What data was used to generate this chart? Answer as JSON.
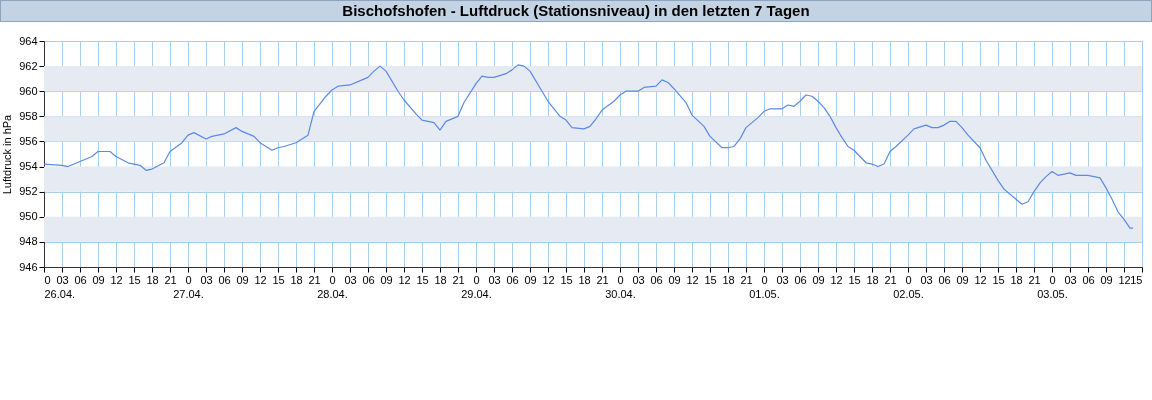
{
  "chart_data": {
    "type": "line",
    "title": "Bischofshofen - Luftdruck (Stationsniveau) in den letzten 7 Tagen",
    "ylabel": "Luftdruck in hPa",
    "xlim": [
      "--04-26T00:00",
      "--05-03T15:00"
    ],
    "ylim": [
      946,
      964
    ],
    "yticks": [
      946,
      948,
      950,
      952,
      954,
      956,
      958,
      960,
      962,
      964
    ],
    "grid": true,
    "xticks": [
      {
        "value": "--04-26T00:00",
        "label": "0\n26.04."
      },
      {
        "value": "--04-26T03:00",
        "label": "03"
      },
      {
        "value": "--04-26T06:00",
        "label": "06"
      },
      {
        "value": "--04-26T09:00",
        "label": "09"
      },
      {
        "value": "--04-26T12:00",
        "label": "12"
      },
      {
        "value": "--04-26T15:00",
        "label": "15"
      },
      {
        "value": "--04-26T18:00",
        "label": "18"
      },
      {
        "value": "--04-26T21:00",
        "label": "21"
      },
      {
        "value": "--04-27T00:00",
        "label": "0\n27.04."
      },
      {
        "value": "--04-27T03:00",
        "label": "03"
      },
      {
        "value": "--04-27T06:00",
        "label": "06"
      },
      {
        "value": "--04-27T09:00",
        "label": "09"
      },
      {
        "value": "--04-27T12:00",
        "label": "12"
      },
      {
        "value": "--04-27T15:00",
        "label": "15"
      },
      {
        "value": "--04-27T18:00",
        "label": "18"
      },
      {
        "value": "--04-27T21:00",
        "label": "21"
      },
      {
        "value": "--04-28T00:00",
        "label": "0\n28.04."
      },
      {
        "value": "--04-28T03:00",
        "label": "03"
      },
      {
        "value": "--04-28T06:00",
        "label": "06"
      },
      {
        "value": "--04-28T09:00",
        "label": "09"
      },
      {
        "value": "--04-28T12:00",
        "label": "12"
      },
      {
        "value": "--04-28T15:00",
        "label": "15"
      },
      {
        "value": "--04-28T18:00",
        "label": "18"
      },
      {
        "value": "--04-28T21:00",
        "label": "21"
      },
      {
        "value": "--04-29T00:00",
        "label": "0\n29.04."
      },
      {
        "value": "--04-29T03:00",
        "label": "03"
      },
      {
        "value": "--04-29T06:00",
        "label": "06"
      },
      {
        "value": "--04-29T09:00",
        "label": "09"
      },
      {
        "value": "--04-29T12:00",
        "label": "12"
      },
      {
        "value": "--04-29T15:00",
        "label": "15"
      },
      {
        "value": "--04-29T18:00",
        "label": "18"
      },
      {
        "value": "--04-29T21:00",
        "label": "21"
      },
      {
        "value": "--04-30T00:00",
        "label": "0\n30.04."
      },
      {
        "value": "--04-30T03:00",
        "label": "03"
      },
      {
        "value": "--04-30T06:00",
        "label": "06"
      },
      {
        "value": "--04-30T09:00",
        "label": "09"
      },
      {
        "value": "--04-30T12:00",
        "label": "12"
      },
      {
        "value": "--04-30T15:00",
        "label": "15"
      },
      {
        "value": "--04-30T18:00",
        "label": "18"
      },
      {
        "value": "--04-30T21:00",
        "label": "21"
      },
      {
        "value": "--05-01T00:00",
        "label": "0\n01.05."
      },
      {
        "value": "--05-01T03:00",
        "label": "03"
      },
      {
        "value": "--05-01T06:00",
        "label": "06"
      },
      {
        "value": "--05-01T09:00",
        "label": "09"
      },
      {
        "value": "--05-01T12:00",
        "label": "12"
      },
      {
        "value": "--05-01T15:00",
        "label": "15"
      },
      {
        "value": "--05-01T18:00",
        "label": "18"
      },
      {
        "value": "--05-01T21:00",
        "label": "21"
      },
      {
        "value": "--05-02T00:00",
        "label": "0\n02.05."
      },
      {
        "value": "--05-02T03:00",
        "label": "03"
      },
      {
        "value": "--05-02T06:00",
        "label": "06"
      },
      {
        "value": "--05-02T09:00",
        "label": "09"
      },
      {
        "value": "--05-02T12:00",
        "label": "12"
      },
      {
        "value": "--05-02T15:00",
        "label": "15"
      },
      {
        "value": "--05-02T18:00",
        "label": "18"
      },
      {
        "value": "--05-02T21:00",
        "label": "21"
      },
      {
        "value": "--05-03T00:00",
        "label": "0\n03.05."
      },
      {
        "value": "--05-03T03:00",
        "label": "03"
      },
      {
        "value": "--05-03T06:00",
        "label": "06"
      },
      {
        "value": "--05-03T09:00",
        "label": "09"
      },
      {
        "value": "--05-03T12:00",
        "label": "12"
      },
      {
        "value": "--05-03T15:00",
        "label": "15"
      }
    ],
    "bands": [
      {
        "axis": "y",
        "from": 948,
        "to": 950,
        "color": "#e6eaf2"
      },
      {
        "axis": "y",
        "from": 952,
        "to": 954,
        "color": "#e6eaf2"
      },
      {
        "axis": "y",
        "from": 956,
        "to": 958,
        "color": "#e6eaf2"
      },
      {
        "axis": "y",
        "from": 960,
        "to": 962,
        "color": "#e6eaf2"
      }
    ],
    "series": [
      {
        "color": "#5b8ae6",
        "x": [
          "--04-26T00:00",
          "--04-26T03:00",
          "--04-26T04:00",
          "--04-26T06:00",
          "--04-26T08:00",
          "--04-26T09:00",
          "--04-26T11:00",
          "--04-26T12:00",
          "--04-26T14:00",
          "--04-26T16:00",
          "--04-26T17:00",
          "--04-26T18:00",
          "--04-26T20:00",
          "--04-26T21:00",
          "--04-26T23:00",
          "--04-27T00:00",
          "--04-27T01:00",
          "--04-27T03:00",
          "--04-27T04:00",
          "--04-27T06:00",
          "--04-27T08:00",
          "--04-27T09:00",
          "--04-27T11:00",
          "--04-27T12:00",
          "--04-27T14:00",
          "--04-27T15:00",
          "--04-27T16:00",
          "--04-27T18:00",
          "--04-27T20:00",
          "--04-27T21:00",
          "--04-27T22:00",
          "--04-27T23:00",
          "--04-28T00:00",
          "--04-28T01:00",
          "--04-28T03:00",
          "--04-28T05:00",
          "--04-28T06:00",
          "--04-28T07:00",
          "--04-28T08:00",
          "--04-28T09:00",
          "--04-28T11:00",
          "--04-28T12:00",
          "--04-28T14:00",
          "--04-28T15:00",
          "--04-28T17:00",
          "--04-28T18:00",
          "--04-28T19:00",
          "--04-28T21:00",
          "--04-28T22:00",
          "--04-29T00:00",
          "--04-29T01:00",
          "--04-29T02:00",
          "--04-29T03:00",
          "--04-29T05:00",
          "--04-29T06:00",
          "--04-29T07:00",
          "--04-29T08:00",
          "--04-29T09:00",
          "--04-29T11:00",
          "--04-29T12:00",
          "--04-29T14:00",
          "--04-29T15:00",
          "--04-29T16:00",
          "--04-29T18:00",
          "--04-29T19:00",
          "--04-29T20:00",
          "--04-29T21:00",
          "--04-29T23:00",
          "--04-30T00:00",
          "--04-30T01:00",
          "--04-30T03:00",
          "--04-30T04:00",
          "--04-30T06:00",
          "--04-30T07:00",
          "--04-30T08:00",
          "--04-30T09:00",
          "--04-30T11:00",
          "--04-30T12:00",
          "--04-30T14:00",
          "--04-30T15:00",
          "--04-30T17:00",
          "--04-30T18:00",
          "--04-30T19:00",
          "--04-30T20:00",
          "--04-30T21:00",
          "--04-30T23:00",
          "--05-01T00:00",
          "--05-01T01:00",
          "--05-01T03:00",
          "--05-01T04:00",
          "--05-01T05:00",
          "--05-01T06:00",
          "--05-01T07:00",
          "--05-01T08:00",
          "--05-01T09:00",
          "--05-01T10:00",
          "--05-01T11:00",
          "--05-01T12:00",
          "--05-01T13:00",
          "--05-01T14:00",
          "--05-01T15:00",
          "--05-01T16:00",
          "--05-01T17:00",
          "--05-01T18:00",
          "--05-01T19:00",
          "--05-01T20:00",
          "--05-01T21:00",
          "--05-01T22:00",
          "--05-02T00:00",
          "--05-02T01:00",
          "--05-02T03:00",
          "--05-02T04:00",
          "--05-02T05:00",
          "--05-02T06:00",
          "--05-02T07:00",
          "--05-02T08:00",
          "--05-02T09:00",
          "--05-02T10:00",
          "--05-02T12:00",
          "--05-02T13:00",
          "--05-02T15:00",
          "--05-02T16:00",
          "--05-02T18:00",
          "--05-02T19:00",
          "--05-02T20:00",
          "--05-02T21:00",
          "--05-02T22:00",
          "--05-02T23:00",
          "--05-03T00:00",
          "--05-03T01:00",
          "--05-03T02:00",
          "--05-03T03:00",
          "--05-03T04:00",
          "--05-03T06:00",
          "--05-03T08:00",
          "--05-03T09:00",
          "--05-03T10:00",
          "--05-03T11:00",
          "--05-03T12:00",
          "--05-03T13:00",
          "--05-03T13:30"
        ],
        "values": [
          954.2,
          954.1,
          954.0,
          954.4,
          954.8,
          955.2,
          955.2,
          954.8,
          954.3,
          954.1,
          953.7,
          953.8,
          954.3,
          955.2,
          955.9,
          956.5,
          956.7,
          956.2,
          956.4,
          956.6,
          957.1,
          956.8,
          956.4,
          955.9,
          955.3,
          955.5,
          955.6,
          955.9,
          956.5,
          958.4,
          959.0,
          959.6,
          960.1,
          960.4,
          960.5,
          960.9,
          961.1,
          961.6,
          962.0,
          961.6,
          960.0,
          959.3,
          958.2,
          957.7,
          957.5,
          956.9,
          957.6,
          958.0,
          959.1,
          960.6,
          961.2,
          961.1,
          961.1,
          961.4,
          961.7,
          962.1,
          962.0,
          961.6,
          960.0,
          959.2,
          958.0,
          957.7,
          957.1,
          957.0,
          957.2,
          957.8,
          958.5,
          959.2,
          959.7,
          960.0,
          960.0,
          960.3,
          960.4,
          960.9,
          960.7,
          960.2,
          959.1,
          958.1,
          957.2,
          956.4,
          955.5,
          955.5,
          955.6,
          956.2,
          957.1,
          957.9,
          958.4,
          958.6,
          958.6,
          958.9,
          958.8,
          959.2,
          959.7,
          959.6,
          959.2,
          958.7,
          958.0,
          957.1,
          956.3,
          955.6,
          955.3,
          954.8,
          954.3,
          954.2,
          954.0,
          954.2,
          955.2,
          955.6,
          956.5,
          957.0,
          957.3,
          957.1,
          957.1,
          957.3,
          957.6,
          957.6,
          957.1,
          956.5,
          955.5,
          954.5,
          952.9,
          952.2,
          951.4,
          951.0,
          951.2,
          952.0,
          952.7,
          953.2,
          953.6,
          953.3,
          953.4,
          953.5,
          953.3,
          953.3,
          953.1,
          952.3,
          951.4,
          950.4,
          949.8,
          949.1,
          949.1
        ]
      }
    ]
  }
}
